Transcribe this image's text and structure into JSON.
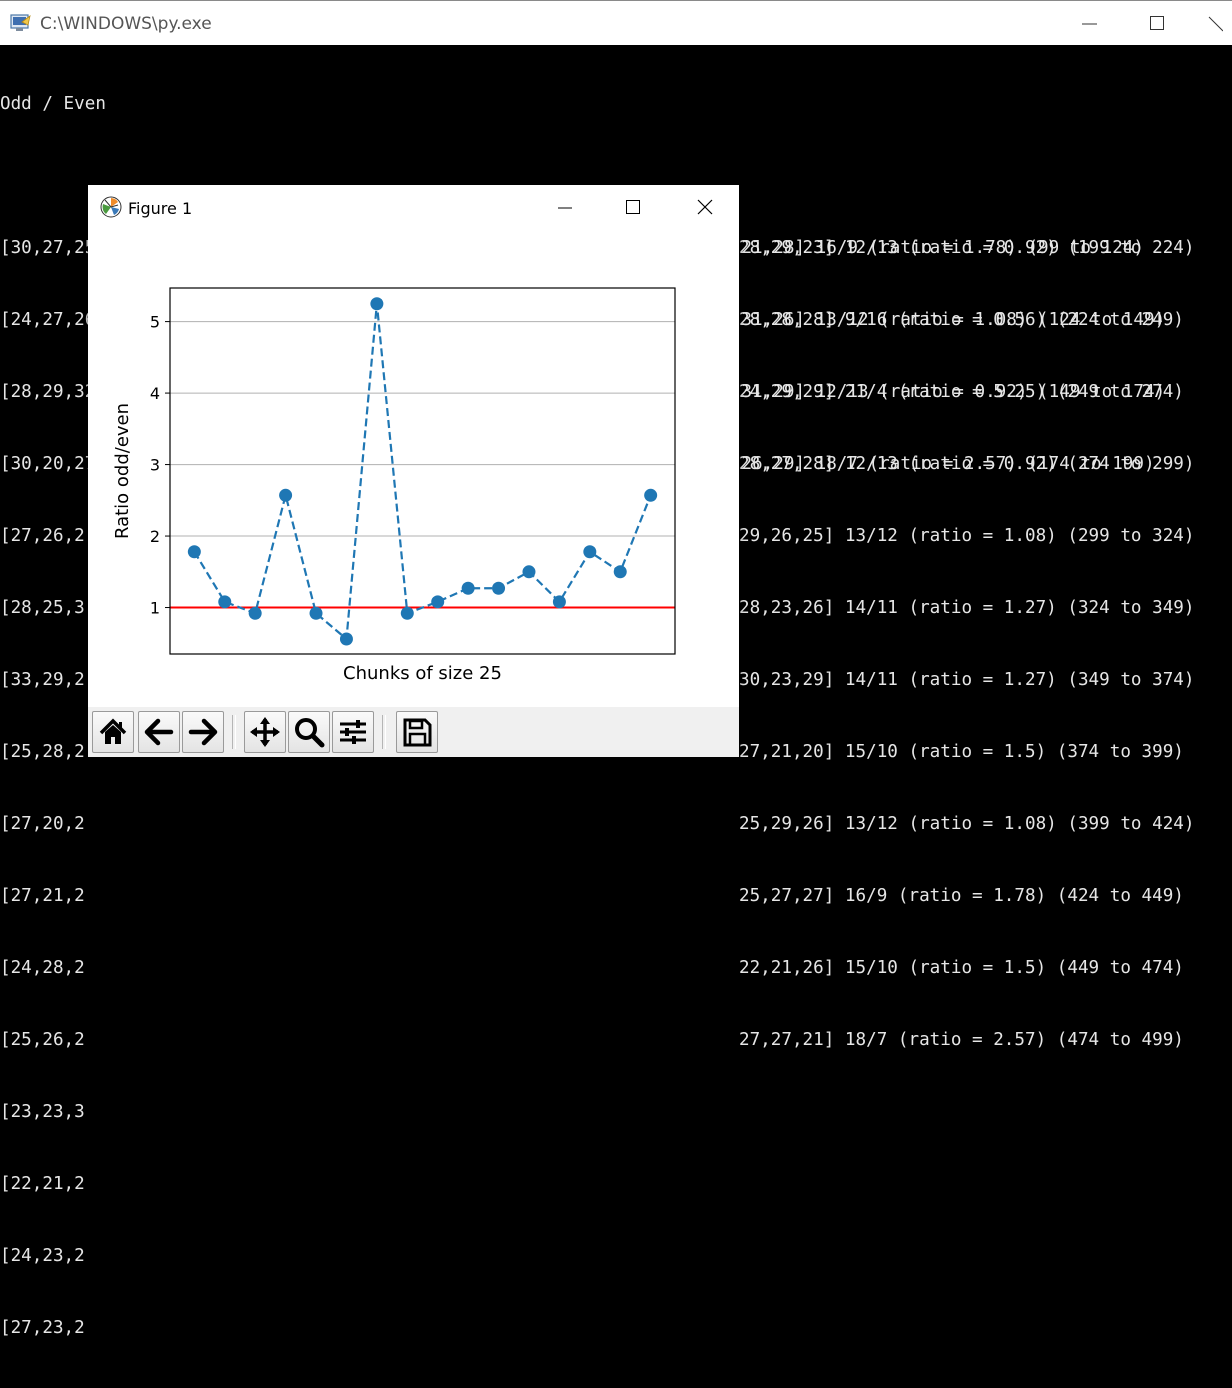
{
  "console": {
    "title": "C:\\WINDOWS\\py.exe",
    "header": "Odd / Even",
    "lines": [
      "[30,27,25,35,28,27,25,23,27,29,29,25,30,27,27,27,29,26,26,27,28,30,26,21,28] 16/9 (ratio = 1.78) (99 to 124)",
      "[24,27,26,28,29,24,29,29,28,28,28,25,35,35,27,24,27,26,25,25,31,30,28,31,26] 13/12 (ratio = 1.08) (124 to 149)",
      "[28,29,32,26,28,27,30,46,29,30,31,22,29,25,30,24,26,29,27,22,33,28,29,31,29] 12/13 (ratio = 0.92) (149 to 174)",
      "[30,20,27,25,31,23,27,31,31,24,29,29,30,27,27,25,27,29,27,28,29,27,22,26,29] 18/7 (ratio = 2.57) (174 to 199)",
      "[27,26,2",
      "[28,25,3",
      "[33,29,2",
      "[25,28,2",
      "[27,20,2",
      "[27,21,2",
      "[24,28,2",
      "[25,26,2",
      "[23,23,3",
      "[22,21,2",
      "[24,23,2",
      "[27,23,2"
    ],
    "right_lines": [
      "28,29,23] 12/13 (ratio = 0.92) (199 to 224)",
      "28,28,28] 9/16 (ratio = 0.56) (224 to 249)",
      "24,29,29] 21/4 (ratio = 5.25) (249 to 274)",
      "28,27,28] 12/13 (ratio = 0.92) (274 to 299)",
      "29,26,25] 13/12 (ratio = 1.08) (299 to 324)",
      "28,23,26] 14/11 (ratio = 1.27) (324 to 349)",
      "30,23,29] 14/11 (ratio = 1.27) (349 to 374)",
      "27,21,20] 15/10 (ratio = 1.5) (374 to 399)",
      "25,29,26] 13/12 (ratio = 1.08) (399 to 424)",
      "25,27,27] 16/9 (ratio = 1.78) (424 to 449)",
      "22,21,26] 15/10 (ratio = 1.5) (449 to 474)",
      "27,27,21] 18/7 (ratio = 2.57) (474 to 499)"
    ]
  },
  "figure": {
    "title": "Figure 1",
    "toolbar": [
      "home-icon",
      "back-icon",
      "forward-icon",
      "pan-icon",
      "zoom-icon",
      "configure-subplots-icon",
      "save-icon"
    ]
  },
  "chart_data": {
    "type": "line",
    "title": "",
    "xlabel": "Chunks of size 25",
    "ylabel": "Ratio odd/even",
    "x": [
      0,
      1,
      2,
      3,
      4,
      5,
      6,
      7,
      8,
      9,
      10,
      11,
      12,
      13,
      14,
      15
    ],
    "series": [
      {
        "values": [
          1.78,
          1.08,
          0.92,
          2.57,
          0.92,
          0.56,
          5.25,
          0.92,
          1.08,
          1.27,
          1.27,
          1.5,
          1.08,
          1.78,
          1.5,
          2.57
        ],
        "color": "#1f77b4",
        "style": "dashed-with-markers"
      }
    ],
    "reference_line": {
      "y": 1,
      "color": "#ff0000"
    },
    "yticks": [
      1,
      2,
      3,
      4,
      5
    ],
    "ylim": [
      0.35,
      5.47
    ],
    "xlim": [
      -0.8,
      15.8
    ],
    "x_ticks_shown": false,
    "grid": "horizontal"
  },
  "colors": {
    "series": "#1f77b4",
    "reference": "#ff0000",
    "grid": "#b0b0b0"
  }
}
